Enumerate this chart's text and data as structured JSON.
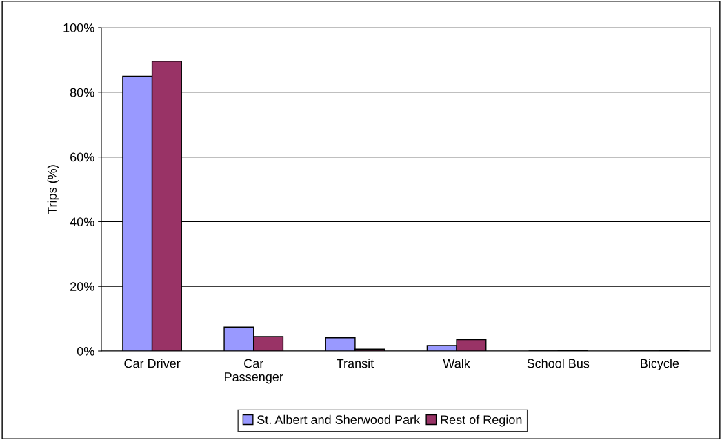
{
  "chart_data": {
    "type": "bar",
    "ylabel": "Trips (%)",
    "categories": [
      "Car Driver",
      "Car\nPassenger",
      "Transit",
      "Walk",
      "School Bus",
      "Bicycle"
    ],
    "series": [
      {
        "name": "St. Albert and Sherwood Park",
        "color": "#9999ff",
        "values": [
          85,
          7.4,
          4.1,
          1.7,
          null,
          null
        ]
      },
      {
        "name": "Rest of Region",
        "color": "#993366",
        "values": [
          89.6,
          4.5,
          0.6,
          3.5,
          0.2,
          0.2
        ]
      }
    ],
    "ylim": [
      0,
      100
    ],
    "yticks": [
      {
        "value": 0,
        "label": "0%"
      },
      {
        "value": 20,
        "label": "20%"
      },
      {
        "value": 40,
        "label": "40%"
      },
      {
        "value": 60,
        "label": "60%"
      },
      {
        "value": 80,
        "label": "80%"
      },
      {
        "value": 100,
        "label": "100%"
      }
    ],
    "grid": "y",
    "legend": "bottom"
  }
}
